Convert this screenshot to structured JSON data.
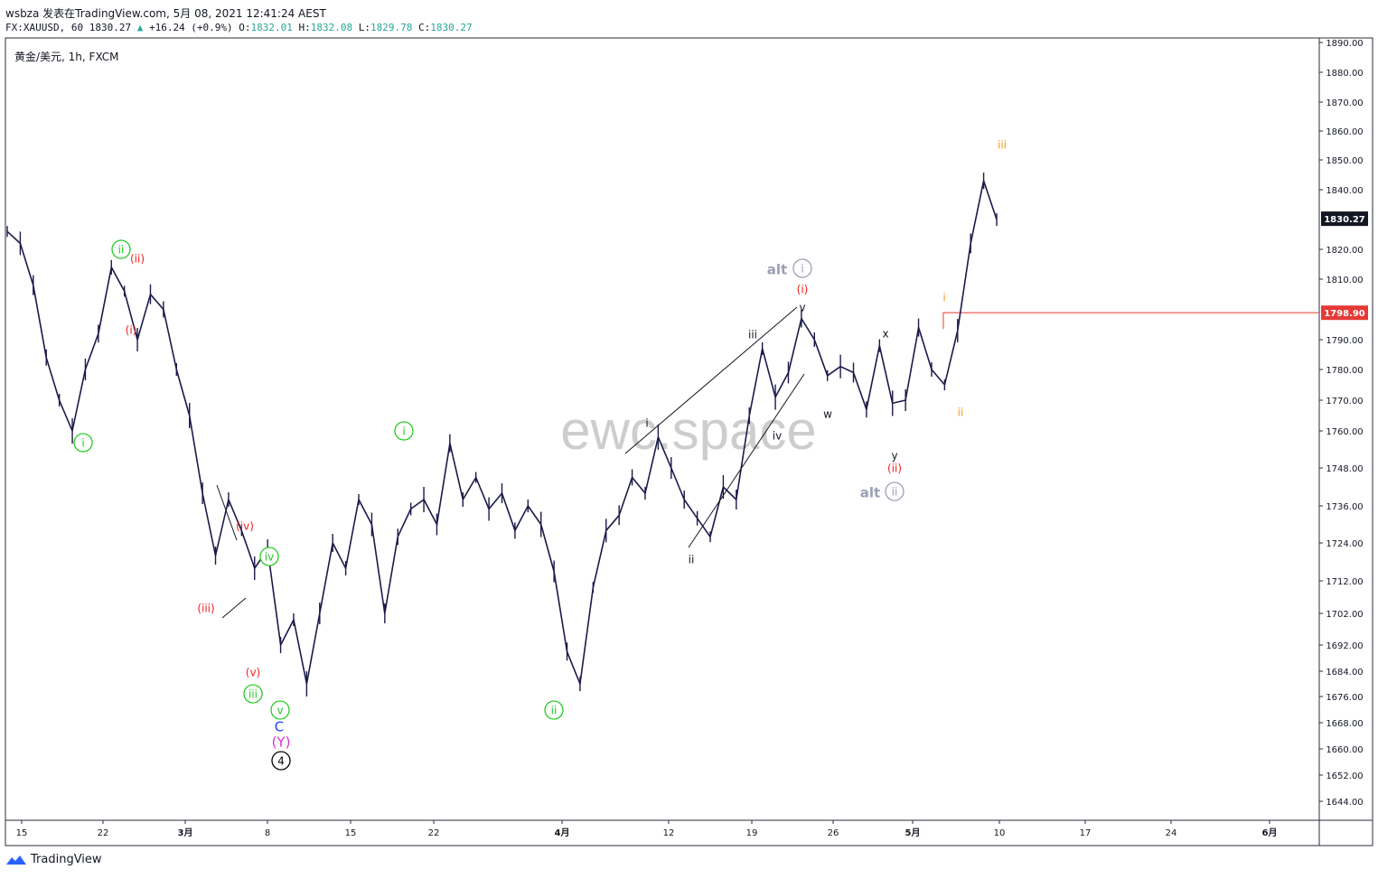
{
  "header": {
    "line1": "wsbza 发表在TradingView.com, 5月 08, 2021 12:41:24 AEST",
    "symbol": "FX:XAUUSD, 60",
    "last": "1830.27",
    "change": "+16.24 (+0.9%)",
    "o_label": "O:",
    "o": "1832.01",
    "h_label": "H:",
    "h": "1832.08",
    "l_label": "L:",
    "l": "1829.78",
    "c_label": "C:",
    "c": "1830.27"
  },
  "pane_title": "黄金/美元, 1h, FXCM",
  "watermark": "ewc.space",
  "footer": {
    "brand": "TradingView"
  },
  "colors": {
    "candle": "#1b1a4a",
    "green_label": "#22cc22",
    "red_label": "#ee2222",
    "orange_label": "#f59c1a",
    "alt_label": "#9aa0b4",
    "level_line": "#e53935",
    "price_tag": "#131722"
  },
  "chart_data": {
    "type": "line",
    "title": "黄金/美元, 1h, FXCM",
    "y_ticks": [
      "1890.00",
      "1880.00",
      "1870.00",
      "1860.00",
      "1850.00",
      "1840.00",
      "1830.27",
      "1820.00",
      "1810.00",
      "1798.90",
      "1790.00",
      "1780.00",
      "1770.00",
      "1760.00",
      "1748.00",
      "1736.00",
      "1724.00",
      "1712.00",
      "1702.00",
      "1692.00",
      "1684.00",
      "1676.00",
      "1668.00",
      "1660.00",
      "1652.00",
      "1644.00"
    ],
    "x_ticks": [
      "15",
      "22",
      "3月",
      "8",
      "15",
      "22",
      "4月",
      "12",
      "19",
      "26",
      "5月",
      "10",
      "17",
      "24",
      "6月"
    ],
    "last_price": 1830.27,
    "level": 1798.9,
    "series": [
      {
        "values": [
          [
            "15",
            1826
          ],
          [
            "17",
            1822
          ],
          [
            "18",
            1808
          ],
          [
            "18.5",
            1784
          ],
          [
            "19",
            1770
          ],
          [
            "19.5",
            1760
          ],
          [
            "20",
            1780
          ],
          [
            "21",
            1792
          ],
          [
            "22",
            1814
          ],
          [
            "22.5",
            1806
          ],
          [
            "23",
            1790
          ],
          [
            "23.5",
            1805
          ],
          [
            "24",
            1800
          ],
          [
            "25",
            1780
          ],
          [
            "26",
            1765
          ],
          [
            "26.5",
            1740
          ],
          [
            "3月",
            1720
          ],
          [
            "2",
            1738
          ],
          [
            "3",
            1728
          ],
          [
            "4",
            1716
          ],
          [
            "5",
            1722
          ],
          [
            "6",
            1692
          ],
          [
            "7",
            1700
          ],
          [
            "8",
            1680
          ],
          [
            "9",
            1702
          ],
          [
            "10",
            1724
          ],
          [
            "11",
            1716
          ],
          [
            "12",
            1738
          ],
          [
            "13",
            1730
          ],
          [
            "14",
            1702
          ],
          [
            "15",
            1726
          ],
          [
            "16",
            1735
          ],
          [
            "17",
            1738
          ],
          [
            "18",
            1730
          ],
          [
            "19",
            1756
          ],
          [
            "20",
            1738
          ],
          [
            "21",
            1745
          ],
          [
            "22",
            1735
          ],
          [
            "23",
            1740
          ],
          [
            "24",
            1728
          ],
          [
            "25",
            1736
          ],
          [
            "26",
            1730
          ],
          [
            "29",
            1715
          ],
          [
            "30",
            1690
          ],
          [
            "31",
            1680
          ],
          [
            "4月",
            1710
          ],
          [
            "2",
            1728
          ],
          [
            "5",
            1733
          ],
          [
            "7",
            1745
          ],
          [
            "8",
            1740
          ],
          [
            "9",
            1758
          ],
          [
            "10",
            1748
          ],
          [
            "11",
            1738
          ],
          [
            "12",
            1732
          ],
          [
            "13",
            1726
          ],
          [
            "14",
            1742
          ],
          [
            "15",
            1738
          ],
          [
            "16",
            1765
          ],
          [
            "19",
            1787
          ],
          [
            "20",
            1771
          ],
          [
            "21",
            1779
          ],
          [
            "22",
            1797
          ],
          [
            "23",
            1790
          ],
          [
            "24",
            1778
          ],
          [
            "26",
            1781
          ],
          [
            "27",
            1779
          ],
          [
            "28",
            1767
          ],
          [
            "29",
            1788
          ],
          [
            "30",
            1769
          ],
          [
            "5月",
            1770
          ],
          [
            "3",
            1794
          ],
          [
            "4",
            1780
          ],
          [
            "5",
            1775
          ],
          [
            "6",
            1793
          ],
          [
            "7",
            1822
          ],
          [
            "8",
            1843
          ],
          [
            "9",
            1830
          ]
        ]
      }
    ],
    "annotations": [
      {
        "text": "i",
        "style": "green-circle"
      },
      {
        "text": "ii",
        "style": "green-circle"
      },
      {
        "text": "(ii)",
        "style": "red"
      },
      {
        "text": "(i)",
        "style": "red"
      },
      {
        "text": "(iv)",
        "style": "red"
      },
      {
        "text": "(iii)",
        "style": "red"
      },
      {
        "text": "iv",
        "style": "green-circle"
      },
      {
        "text": "(v)",
        "style": "red"
      },
      {
        "text": "iii",
        "style": "green-circle"
      },
      {
        "text": "v",
        "style": "green-circle"
      },
      {
        "text": "C",
        "style": "blue"
      },
      {
        "text": "(Y)",
        "style": "magenta"
      },
      {
        "text": "4",
        "style": "black-circle"
      },
      {
        "text": "i",
        "style": "green-circle"
      },
      {
        "text": "ii",
        "style": "green-circle"
      },
      {
        "text": "i",
        "style": "black"
      },
      {
        "text": "ii",
        "style": "black"
      },
      {
        "text": "iii",
        "style": "black"
      },
      {
        "text": "iv",
        "style": "black"
      },
      {
        "text": "v",
        "style": "black"
      },
      {
        "text": "(i)",
        "style": "red"
      },
      {
        "text": "alt",
        "style": "alt"
      },
      {
        "text": "i",
        "style": "alt-circle"
      },
      {
        "text": "w",
        "style": "black"
      },
      {
        "text": "x",
        "style": "black"
      },
      {
        "text": "y",
        "style": "black"
      },
      {
        "text": "(ii)",
        "style": "red"
      },
      {
        "text": "alt",
        "style": "alt"
      },
      {
        "text": "ii",
        "style": "alt-circle"
      },
      {
        "text": "i",
        "style": "orange"
      },
      {
        "text": "ii",
        "style": "orange"
      },
      {
        "text": "iii",
        "style": "orange"
      }
    ]
  }
}
